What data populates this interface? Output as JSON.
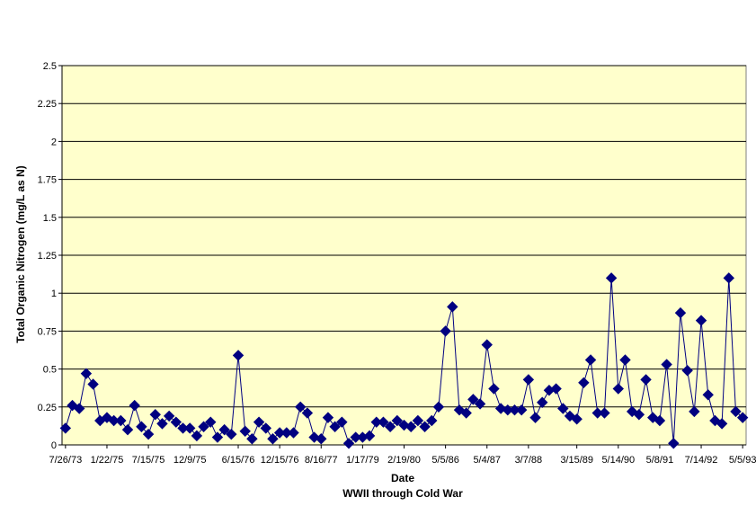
{
  "chart_data": {
    "type": "line",
    "title": "",
    "xlabel": "Date",
    "subtitle": "WWII through Cold War",
    "ylabel": "Total Organic Nitrogen (mg/L as N)",
    "ylim": [
      0,
      2.5
    ],
    "yticks": [
      "0",
      "0.25",
      "0.5",
      "0.75",
      "1",
      "1.25",
      "1.5",
      "1.75",
      "2",
      "2.25",
      "2.5"
    ],
    "xtick_labels": [
      "7/26/73",
      "1/22/75",
      "7/15/75",
      "12/9/75",
      "6/15/76",
      "12/15/76",
      "8/16/77",
      "1/17/79",
      "2/19/80",
      "5/5/86",
      "5/4/87",
      "3/7/88",
      "3/15/89",
      "5/14/90",
      "5/8/91",
      "7/14/92",
      "5/5/93"
    ],
    "grid": true,
    "legend": "none",
    "plot_background": "#FFFFCC",
    "line_color": "#000080",
    "marker_color": "#000080",
    "series": [
      {
        "name": "Total Organic Nitrogen",
        "marker": "diamond",
        "values": [
          0.11,
          0.26,
          0.24,
          0.47,
          0.4,
          0.16,
          0.18,
          0.16,
          0.16,
          0.1,
          0.26,
          0.12,
          0.07,
          0.2,
          0.14,
          0.19,
          0.15,
          0.11,
          0.11,
          0.06,
          0.12,
          0.15,
          0.05,
          0.1,
          0.07,
          0.59,
          0.09,
          0.04,
          0.15,
          0.11,
          0.04,
          0.08,
          0.08,
          0.08,
          0.25,
          0.21,
          0.05,
          0.04,
          0.18,
          0.12,
          0.15,
          0.01,
          0.05,
          0.05,
          0.06,
          0.15,
          0.15,
          0.12,
          0.16,
          0.13,
          0.12,
          0.16,
          0.12,
          0.16,
          0.25,
          0.75,
          0.91,
          0.23,
          0.21,
          0.3,
          0.27,
          0.66,
          0.37,
          0.24,
          0.23,
          0.23,
          0.23,
          0.43,
          0.18,
          0.28,
          0.36,
          0.37,
          0.24,
          0.19,
          0.17,
          0.41,
          0.56,
          0.21,
          0.21,
          1.1,
          0.37,
          0.56,
          0.22,
          0.2,
          0.43,
          0.18,
          0.16,
          0.53,
          0.01,
          0.87,
          0.49,
          0.22,
          0.82,
          0.33,
          0.16,
          0.14,
          1.1,
          0.22,
          0.18
        ]
      }
    ]
  }
}
